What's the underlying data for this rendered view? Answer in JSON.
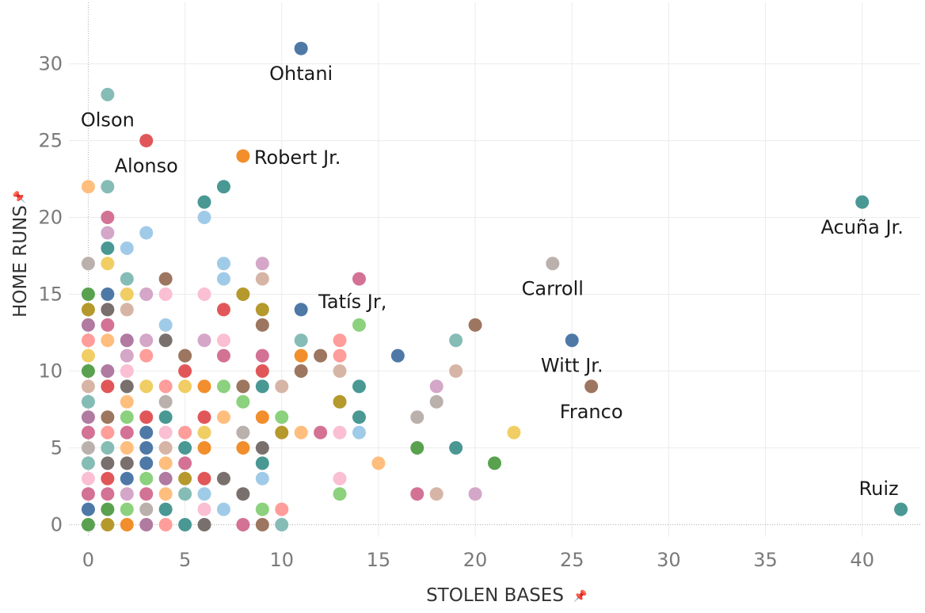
{
  "chart_data": {
    "type": "scatter",
    "xlabel": "STOLEN BASES",
    "ylabel": "HOME RUNS",
    "xlim": [
      -1,
      43
    ],
    "ylim": [
      -0.8,
      34
    ],
    "xticks": [
      0,
      5,
      10,
      15,
      20,
      25,
      30,
      35,
      40
    ],
    "yticks": [
      0,
      5,
      10,
      15,
      20,
      25,
      30
    ],
    "grid": true,
    "legend": "none",
    "points": [
      {
        "x": 11,
        "y": 31,
        "color": "#4e79a7"
      },
      {
        "x": 1,
        "y": 28,
        "color": "#86bcb6"
      },
      {
        "x": 3,
        "y": 25,
        "color": "#e15759"
      },
      {
        "x": 8,
        "y": 24,
        "color": "#f28e2b"
      },
      {
        "x": 0,
        "y": 22,
        "color": "#ffbe7d"
      },
      {
        "x": 1,
        "y": 22,
        "color": "#86bcb6"
      },
      {
        "x": 7,
        "y": 22,
        "color": "#499894"
      },
      {
        "x": 6,
        "y": 21,
        "color": "#499894"
      },
      {
        "x": 40,
        "y": 21,
        "color": "#499894"
      },
      {
        "x": 1,
        "y": 20,
        "color": "#d37295"
      },
      {
        "x": 6,
        "y": 20,
        "color": "#a0cbe8"
      },
      {
        "x": 1,
        "y": 19,
        "color": "#d4a6c8"
      },
      {
        "x": 3,
        "y": 19,
        "color": "#a0cbe8"
      },
      {
        "x": 1,
        "y": 18,
        "color": "#499894"
      },
      {
        "x": 2,
        "y": 18,
        "color": "#a0cbe8"
      },
      {
        "x": 0,
        "y": 17,
        "color": "#bab0ac"
      },
      {
        "x": 1,
        "y": 17,
        "color": "#f1ce63"
      },
      {
        "x": 7,
        "y": 17,
        "color": "#a0cbe8"
      },
      {
        "x": 9,
        "y": 17,
        "color": "#d4a6c8"
      },
      {
        "x": 24,
        "y": 17,
        "color": "#bab0ac"
      },
      {
        "x": 2,
        "y": 16,
        "color": "#86bcb6"
      },
      {
        "x": 4,
        "y": 16,
        "color": "#9d7660"
      },
      {
        "x": 7,
        "y": 16,
        "color": "#a0cbe8"
      },
      {
        "x": 9,
        "y": 16,
        "color": "#d7b5a6"
      },
      {
        "x": 14,
        "y": 16,
        "color": "#d37295"
      },
      {
        "x": 0,
        "y": 15,
        "color": "#59a14f"
      },
      {
        "x": 1,
        "y": 15,
        "color": "#4e79a7"
      },
      {
        "x": 2,
        "y": 15,
        "color": "#f1ce63"
      },
      {
        "x": 3,
        "y": 15,
        "color": "#d4a6c8"
      },
      {
        "x": 4,
        "y": 15,
        "color": "#fabfd2"
      },
      {
        "x": 6,
        "y": 15,
        "color": "#fabfd2"
      },
      {
        "x": 8,
        "y": 15,
        "color": "#b6992d"
      },
      {
        "x": 0,
        "y": 14,
        "color": "#b6992d"
      },
      {
        "x": 1,
        "y": 14,
        "color": "#79706e"
      },
      {
        "x": 2,
        "y": 14,
        "color": "#d7b5a6"
      },
      {
        "x": 7,
        "y": 14,
        "color": "#e15759"
      },
      {
        "x": 9,
        "y": 14,
        "color": "#b6992d"
      },
      {
        "x": 11,
        "y": 14,
        "color": "#4e79a7"
      },
      {
        "x": 0,
        "y": 13,
        "color": "#b07aa1"
      },
      {
        "x": 1,
        "y": 13,
        "color": "#d37295"
      },
      {
        "x": 4,
        "y": 13,
        "color": "#a0cbe8"
      },
      {
        "x": 9,
        "y": 13,
        "color": "#9d7660"
      },
      {
        "x": 14,
        "y": 13,
        "color": "#8cd17d"
      },
      {
        "x": 20,
        "y": 13,
        "color": "#9d7660"
      },
      {
        "x": 0,
        "y": 12,
        "color": "#ff9d9a"
      },
      {
        "x": 1,
        "y": 12,
        "color": "#ffbe7d"
      },
      {
        "x": 2,
        "y": 12,
        "color": "#b07aa1"
      },
      {
        "x": 3,
        "y": 12,
        "color": "#d4a6c8"
      },
      {
        "x": 4,
        "y": 12,
        "color": "#79706e"
      },
      {
        "x": 6,
        "y": 12,
        "color": "#d4a6c8"
      },
      {
        "x": 7,
        "y": 12,
        "color": "#fabfd2"
      },
      {
        "x": 11,
        "y": 12,
        "color": "#86bcb6"
      },
      {
        "x": 13,
        "y": 12,
        "color": "#ff9d9a"
      },
      {
        "x": 19,
        "y": 12,
        "color": "#86bcb6"
      },
      {
        "x": 25,
        "y": 12,
        "color": "#4e79a7"
      },
      {
        "x": 0,
        "y": 11,
        "color": "#f1ce63"
      },
      {
        "x": 2,
        "y": 11,
        "color": "#d4a6c8"
      },
      {
        "x": 3,
        "y": 11,
        "color": "#ff9d9a"
      },
      {
        "x": 5,
        "y": 11,
        "color": "#9d7660"
      },
      {
        "x": 7,
        "y": 11,
        "color": "#d37295"
      },
      {
        "x": 9,
        "y": 11,
        "color": "#d37295"
      },
      {
        "x": 11,
        "y": 11,
        "color": "#f28e2b"
      },
      {
        "x": 12,
        "y": 11,
        "color": "#9d7660"
      },
      {
        "x": 13,
        "y": 11,
        "color": "#ff9d9a"
      },
      {
        "x": 16,
        "y": 11,
        "color": "#4e79a7"
      },
      {
        "x": 0,
        "y": 10,
        "color": "#59a14f"
      },
      {
        "x": 1,
        "y": 10,
        "color": "#b07aa1"
      },
      {
        "x": 2,
        "y": 10,
        "color": "#fabfd2"
      },
      {
        "x": 5,
        "y": 10,
        "color": "#e15759"
      },
      {
        "x": 9,
        "y": 10,
        "color": "#e15759"
      },
      {
        "x": 11,
        "y": 10,
        "color": "#9d7660"
      },
      {
        "x": 13,
        "y": 10,
        "color": "#d7b5a6"
      },
      {
        "x": 19,
        "y": 10,
        "color": "#d7b5a6"
      },
      {
        "x": 0,
        "y": 9,
        "color": "#d7b5a6"
      },
      {
        "x": 1,
        "y": 9,
        "color": "#e15759"
      },
      {
        "x": 2,
        "y": 9,
        "color": "#79706e"
      },
      {
        "x": 3,
        "y": 9,
        "color": "#f1ce63"
      },
      {
        "x": 4,
        "y": 9,
        "color": "#ff9d9a"
      },
      {
        "x": 5,
        "y": 9,
        "color": "#f1ce63"
      },
      {
        "x": 6,
        "y": 9,
        "color": "#f28e2b"
      },
      {
        "x": 7,
        "y": 9,
        "color": "#8cd17d"
      },
      {
        "x": 8,
        "y": 9,
        "color": "#9d7660"
      },
      {
        "x": 9,
        "y": 9,
        "color": "#499894"
      },
      {
        "x": 10,
        "y": 9,
        "color": "#d7b5a6"
      },
      {
        "x": 14,
        "y": 9,
        "color": "#499894"
      },
      {
        "x": 18,
        "y": 9,
        "color": "#d4a6c8"
      },
      {
        "x": 26,
        "y": 9,
        "color": "#9d7660"
      },
      {
        "x": 0,
        "y": 8,
        "color": "#86bcb6"
      },
      {
        "x": 2,
        "y": 8,
        "color": "#ffbe7d"
      },
      {
        "x": 4,
        "y": 8,
        "color": "#bab0ac"
      },
      {
        "x": 8,
        "y": 8,
        "color": "#8cd17d"
      },
      {
        "x": 13,
        "y": 8,
        "color": "#b6992d"
      },
      {
        "x": 18,
        "y": 8,
        "color": "#bab0ac"
      },
      {
        "x": 0,
        "y": 7,
        "color": "#b07aa1"
      },
      {
        "x": 1,
        "y": 7,
        "color": "#9d7660"
      },
      {
        "x": 2,
        "y": 7,
        "color": "#8cd17d"
      },
      {
        "x": 3,
        "y": 7,
        "color": "#e15759"
      },
      {
        "x": 4,
        "y": 7,
        "color": "#499894"
      },
      {
        "x": 6,
        "y": 7,
        "color": "#e15759"
      },
      {
        "x": 7,
        "y": 7,
        "color": "#ffbe7d"
      },
      {
        "x": 9,
        "y": 7,
        "color": "#f28e2b"
      },
      {
        "x": 10,
        "y": 7,
        "color": "#8cd17d"
      },
      {
        "x": 14,
        "y": 7,
        "color": "#499894"
      },
      {
        "x": 17,
        "y": 7,
        "color": "#bab0ac"
      },
      {
        "x": 0,
        "y": 6,
        "color": "#d37295"
      },
      {
        "x": 1,
        "y": 6,
        "color": "#ff9d9a"
      },
      {
        "x": 2,
        "y": 6,
        "color": "#d37295"
      },
      {
        "x": 3,
        "y": 6,
        "color": "#4e79a7"
      },
      {
        "x": 4,
        "y": 6,
        "color": "#fabfd2"
      },
      {
        "x": 5,
        "y": 6,
        "color": "#ff9d9a"
      },
      {
        "x": 6,
        "y": 6,
        "color": "#f1ce63"
      },
      {
        "x": 8,
        "y": 6,
        "color": "#bab0ac"
      },
      {
        "x": 10,
        "y": 6,
        "color": "#b6992d"
      },
      {
        "x": 11,
        "y": 6,
        "color": "#ffbe7d"
      },
      {
        "x": 12,
        "y": 6,
        "color": "#d37295"
      },
      {
        "x": 13,
        "y": 6,
        "color": "#fabfd2"
      },
      {
        "x": 14,
        "y": 6,
        "color": "#a0cbe8"
      },
      {
        "x": 22,
        "y": 6,
        "color": "#f1ce63"
      },
      {
        "x": 0,
        "y": 5,
        "color": "#bab0ac"
      },
      {
        "x": 1,
        "y": 5,
        "color": "#86bcb6"
      },
      {
        "x": 2,
        "y": 5,
        "color": "#ffbe7d"
      },
      {
        "x": 3,
        "y": 5,
        "color": "#4e79a7"
      },
      {
        "x": 4,
        "y": 5,
        "color": "#d7b5a6"
      },
      {
        "x": 5,
        "y": 5,
        "color": "#499894"
      },
      {
        "x": 6,
        "y": 5,
        "color": "#f28e2b"
      },
      {
        "x": 8,
        "y": 5,
        "color": "#f28e2b"
      },
      {
        "x": 9,
        "y": 5,
        "color": "#79706e"
      },
      {
        "x": 17,
        "y": 5,
        "color": "#59a14f"
      },
      {
        "x": 19,
        "y": 5,
        "color": "#499894"
      },
      {
        "x": 0,
        "y": 4,
        "color": "#86bcb6"
      },
      {
        "x": 1,
        "y": 4,
        "color": "#79706e"
      },
      {
        "x": 2,
        "y": 4,
        "color": "#79706e"
      },
      {
        "x": 3,
        "y": 4,
        "color": "#4e79a7"
      },
      {
        "x": 4,
        "y": 4,
        "color": "#ffbe7d"
      },
      {
        "x": 5,
        "y": 4,
        "color": "#d37295"
      },
      {
        "x": 9,
        "y": 4,
        "color": "#499894"
      },
      {
        "x": 15,
        "y": 4,
        "color": "#ffbe7d"
      },
      {
        "x": 21,
        "y": 4,
        "color": "#59a14f"
      },
      {
        "x": 0,
        "y": 3,
        "color": "#fabfd2"
      },
      {
        "x": 1,
        "y": 3,
        "color": "#e15759"
      },
      {
        "x": 2,
        "y": 3,
        "color": "#4e79a7"
      },
      {
        "x": 3,
        "y": 3,
        "color": "#8cd17d"
      },
      {
        "x": 4,
        "y": 3,
        "color": "#b07aa1"
      },
      {
        "x": 5,
        "y": 3,
        "color": "#b6992d"
      },
      {
        "x": 6,
        "y": 3,
        "color": "#e15759"
      },
      {
        "x": 7,
        "y": 3,
        "color": "#79706e"
      },
      {
        "x": 9,
        "y": 3,
        "color": "#a0cbe8"
      },
      {
        "x": 13,
        "y": 3,
        "color": "#fabfd2"
      },
      {
        "x": 0,
        "y": 2,
        "color": "#d37295"
      },
      {
        "x": 1,
        "y": 2,
        "color": "#d37295"
      },
      {
        "x": 2,
        "y": 2,
        "color": "#d4a6c8"
      },
      {
        "x": 3,
        "y": 2,
        "color": "#d37295"
      },
      {
        "x": 4,
        "y": 2,
        "color": "#ffbe7d"
      },
      {
        "x": 5,
        "y": 2,
        "color": "#86bcb6"
      },
      {
        "x": 6,
        "y": 2,
        "color": "#a0cbe8"
      },
      {
        "x": 8,
        "y": 2,
        "color": "#79706e"
      },
      {
        "x": 13,
        "y": 2,
        "color": "#8cd17d"
      },
      {
        "x": 17,
        "y": 2,
        "color": "#d37295"
      },
      {
        "x": 18,
        "y": 2,
        "color": "#d7b5a6"
      },
      {
        "x": 20,
        "y": 2,
        "color": "#d4a6c8"
      },
      {
        "x": 0,
        "y": 1,
        "color": "#4e79a7"
      },
      {
        "x": 1,
        "y": 1,
        "color": "#59a14f"
      },
      {
        "x": 2,
        "y": 1,
        "color": "#8cd17d"
      },
      {
        "x": 3,
        "y": 1,
        "color": "#bab0ac"
      },
      {
        "x": 4,
        "y": 1,
        "color": "#499894"
      },
      {
        "x": 6,
        "y": 1,
        "color": "#fabfd2"
      },
      {
        "x": 7,
        "y": 1,
        "color": "#a0cbe8"
      },
      {
        "x": 9,
        "y": 1,
        "color": "#8cd17d"
      },
      {
        "x": 10,
        "y": 1,
        "color": "#ff9d9a"
      },
      {
        "x": 42,
        "y": 1,
        "color": "#499894"
      },
      {
        "x": 0,
        "y": 0,
        "color": "#59a14f"
      },
      {
        "x": 1,
        "y": 0,
        "color": "#b6992d"
      },
      {
        "x": 2,
        "y": 0,
        "color": "#f28e2b"
      },
      {
        "x": 3,
        "y": 0,
        "color": "#b07aa1"
      },
      {
        "x": 4,
        "y": 0,
        "color": "#ff9d9a"
      },
      {
        "x": 5,
        "y": 0,
        "color": "#499894"
      },
      {
        "x": 6,
        "y": 0,
        "color": "#79706e"
      },
      {
        "x": 8,
        "y": 0,
        "color": "#d37295"
      },
      {
        "x": 9,
        "y": 0,
        "color": "#9d7660"
      },
      {
        "x": 10,
        "y": 0,
        "color": "#86bcb6"
      }
    ],
    "annotations": [
      {
        "text": "Ohtani",
        "x": 11,
        "y": 31,
        "pos": "below"
      },
      {
        "text": "Olson",
        "x": 1,
        "y": 28,
        "pos": "below"
      },
      {
        "text": "Alonso",
        "x": 3,
        "y": 25,
        "pos": "below"
      },
      {
        "text": "Robert Jr.",
        "x": 8,
        "y": 24,
        "pos": "right"
      },
      {
        "text": "Acuña Jr.",
        "x": 40,
        "y": 21,
        "pos": "below"
      },
      {
        "text": "Carroll",
        "x": 24,
        "y": 17,
        "pos": "below"
      },
      {
        "text": "Tatís Jr,",
        "x": 11,
        "y": 14,
        "pos": "upper-right"
      },
      {
        "text": "Witt Jr.",
        "x": 25,
        "y": 12,
        "pos": "below"
      },
      {
        "text": "Franco",
        "x": 26,
        "y": 9,
        "pos": "below"
      },
      {
        "text": "Ruiz",
        "x": 42,
        "y": 1,
        "pos": "above"
      }
    ]
  }
}
